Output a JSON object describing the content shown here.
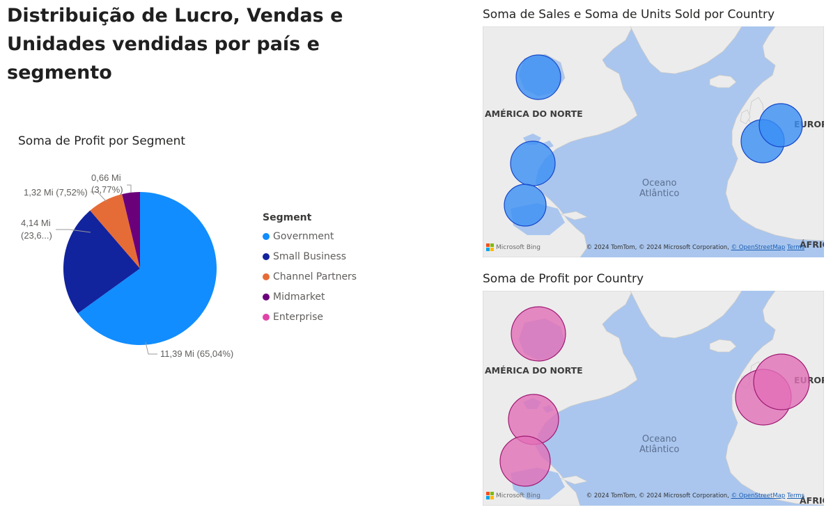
{
  "page": {
    "title": "Distribuição de Lucro, Vendas e Unidades vendidas por país e segmento"
  },
  "pie_visual": {
    "title": "Soma de Profit por Segment",
    "legend_title": "Segment",
    "legend": [
      {
        "label": "Government",
        "color": "#118DFF"
      },
      {
        "label": "Small Business",
        "color": "#12239E"
      },
      {
        "label": "Channel Partners",
        "color": "#E66C37"
      },
      {
        "label": "Midmarket",
        "color": "#6B007B"
      },
      {
        "label": "Enterprise",
        "color": "#E044A7"
      }
    ],
    "data_labels": {
      "government_line1": "11,39 Mi (65,04%)",
      "small_business_line1": "4,14 Mi",
      "small_business_line2": "(23,6...)",
      "channel_partners_line1": "1,32 Mi (7,52%)",
      "midmarket_line1": "0,66 Mi",
      "midmarket_line2": "(3,77%)"
    }
  },
  "chart_data": [
    {
      "type": "pie",
      "title": "Soma de Profit por Segment",
      "legend_title": "Segment",
      "categories": [
        "Government",
        "Small Business",
        "Channel Partners",
        "Midmarket"
      ],
      "values": [
        11.39,
        4.14,
        1.32,
        0.66
      ],
      "percent": [
        65.04,
        23.6,
        7.52,
        3.77
      ],
      "unit": "Mi",
      "colors": [
        "#118DFF",
        "#12239E",
        "#E66C37",
        "#6B007B"
      ],
      "legend_placement": "right"
    }
  ],
  "map1": {
    "title": "Soma de Sales e Soma de Units Sold por Country",
    "bubble_color": "#3a8ef5",
    "bubble_stroke": "#1446c8"
  },
  "map2": {
    "title": "Soma de Profit por Country",
    "bubble_color": "#e26fb8",
    "bubble_stroke": "#9e1a72"
  },
  "map_common": {
    "label_north_america": "AMÉRICA DO NORTE",
    "label_europe": "EUROP",
    "label_africa": "ÁFRIC",
    "ocean_line1": "Oceano",
    "ocean_line2": "Atlântico",
    "bing": "Microsoft Bing",
    "copyright": "© 2024 TomTom, © 2024 Microsoft Corporation,",
    "osm": "© OpenStreetMap",
    "terms": "Terms",
    "land_color": "#ececec",
    "water_color": "#aac6ee"
  }
}
